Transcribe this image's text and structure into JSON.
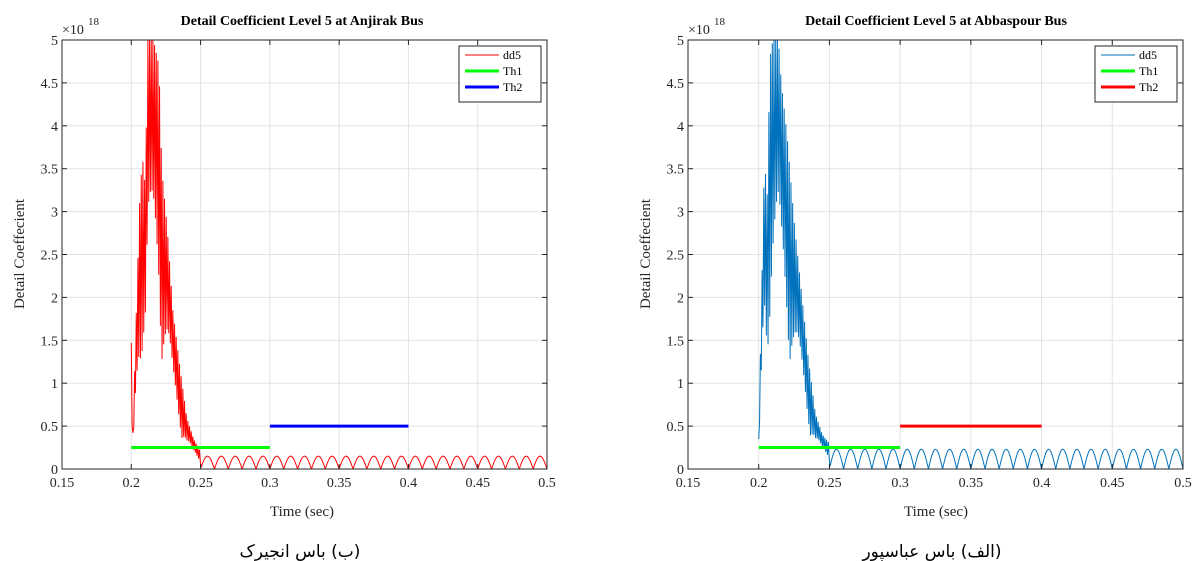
{
  "chart_data": [
    {
      "type": "line",
      "title": "Detail Coefficient Level 5 at Anjirak Bus",
      "xlabel": "Time (sec)",
      "ylabel": "Detail Coeffecient",
      "y_exponent_base": "×10",
      "y_exponent_power": "18",
      "caption": "(ب) باس انجیرک",
      "xlim": [
        0.15,
        0.5
      ],
      "ylim": [
        0,
        5
      ],
      "xticks": [
        "0.15",
        "0.2",
        "0.25",
        "0.3",
        "0.35",
        "0.4",
        "0.45",
        "0.5"
      ],
      "yticks": [
        "0",
        "0.5",
        "1",
        "1.5",
        "2",
        "2.5",
        "3",
        "3.5",
        "4",
        "4.5",
        "5"
      ],
      "grid": true,
      "legend_position": "top-right",
      "series": [
        {
          "name": "dd5",
          "color": "#ff0000",
          "style": "signal",
          "envelope": [
            [
              0.2,
              1.47
            ],
            [
              0.201,
              0.3
            ],
            [
              0.203,
              1.5
            ],
            [
              0.206,
              3.1
            ],
            [
              0.208,
              3.65
            ],
            [
              0.21,
              3.3
            ],
            [
              0.212,
              5.0
            ],
            [
              0.216,
              5.0
            ],
            [
              0.22,
              4.7
            ],
            [
              0.222,
              3.5
            ],
            [
              0.226,
              2.8
            ],
            [
              0.23,
              1.85
            ],
            [
              0.235,
              1.2
            ],
            [
              0.24,
              0.6
            ],
            [
              0.245,
              0.35
            ],
            [
              0.25,
              0.2
            ],
            [
              0.26,
              0.15
            ],
            [
              0.5,
              0.15
            ]
          ],
          "ripple_amplitude": 0.15,
          "ripple_period": 0.01
        },
        {
          "name": "Th1",
          "color": "#00ff00",
          "x": [
            0.2,
            0.3
          ],
          "y": [
            0.25,
            0.25
          ]
        },
        {
          "name": "Th2",
          "color": "#0000ff",
          "x": [
            0.3,
            0.4
          ],
          "y": [
            0.5,
            0.5
          ]
        }
      ]
    },
    {
      "type": "line",
      "title": "Detail Coefficient Level 5 at Abbaspour Bus",
      "xlabel": "Time (sec)",
      "ylabel": "Detail Coeffecient",
      "y_exponent_base": "×10",
      "y_exponent_power": "18",
      "caption": "(الف) باس عباسپور",
      "xlim": [
        0.15,
        0.5
      ],
      "ylim": [
        0,
        5
      ],
      "xticks": [
        "0.15",
        "0.2",
        "0.25",
        "0.3",
        "0.35",
        "0.4",
        "0.45",
        "0.5"
      ],
      "yticks": [
        "0",
        "0.5",
        "1",
        "1.5",
        "2",
        "2.5",
        "3",
        "3.5",
        "4",
        "4.5",
        "5"
      ],
      "grid": true,
      "legend_position": "top-right",
      "series": [
        {
          "name": "dd5",
          "color": "#0072bd",
          "style": "signal",
          "envelope": [
            [
              0.2,
              0.35
            ],
            [
              0.202,
              2.0
            ],
            [
              0.204,
              3.6
            ],
            [
              0.206,
              3.2
            ],
            [
              0.208,
              4.8
            ],
            [
              0.21,
              5.0
            ],
            [
              0.214,
              5.0
            ],
            [
              0.216,
              4.5
            ],
            [
              0.22,
              3.9
            ],
            [
              0.225,
              2.9
            ],
            [
              0.23,
              2.1
            ],
            [
              0.235,
              1.3
            ],
            [
              0.24,
              0.65
            ],
            [
              0.245,
              0.4
            ],
            [
              0.25,
              0.3
            ],
            [
              0.26,
              0.23
            ],
            [
              0.5,
              0.23
            ]
          ],
          "ripple_amplitude": 0.23,
          "ripple_period": 0.01
        },
        {
          "name": "Th1",
          "color": "#00ff00",
          "x": [
            0.2,
            0.3
          ],
          "y": [
            0.25,
            0.25
          ]
        },
        {
          "name": "Th2",
          "color": "#ff0000",
          "x": [
            0.3,
            0.4
          ],
          "y": [
            0.5,
            0.5
          ]
        }
      ]
    }
  ]
}
